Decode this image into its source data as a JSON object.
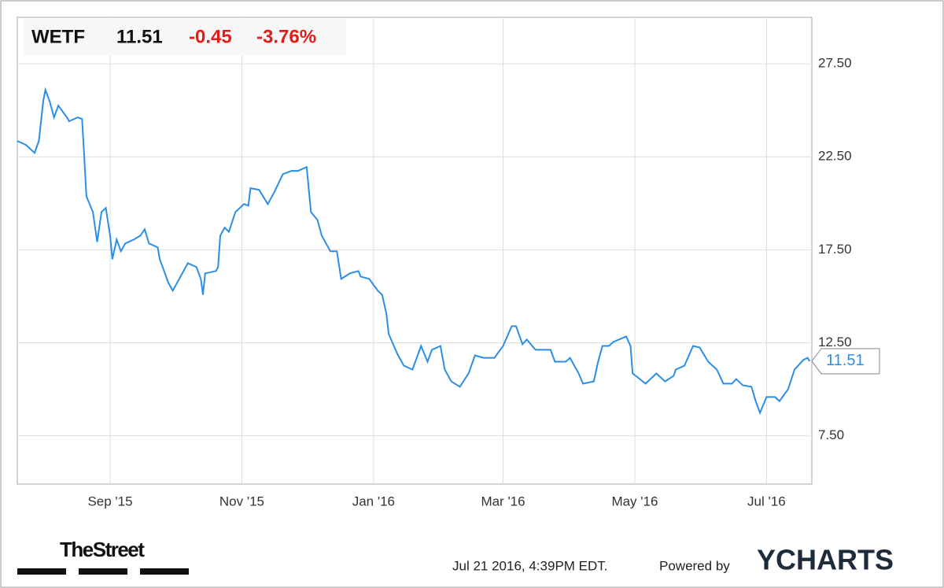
{
  "header": {
    "ticker": "WETF",
    "price": "11.51",
    "change": "-0.45",
    "change_pct": "-3.76%"
  },
  "chart_data": {
    "type": "line",
    "color": "#2b8ee6",
    "grid": true,
    "x": [
      -43,
      -39,
      -35,
      -33,
      -31,
      -30,
      -28,
      -26,
      -24,
      -20,
      -19,
      -15,
      -13,
      -12,
      -11,
      -8,
      -6,
      -4,
      -2,
      0,
      1,
      3,
      5,
      7,
      11,
      14,
      16,
      18,
      22,
      23,
      25,
      27,
      29,
      32,
      36,
      40,
      42,
      43,
      44,
      49,
      50,
      51,
      53,
      55,
      58,
      62,
      64,
      65,
      69,
      73,
      76,
      80,
      84,
      87,
      91,
      93,
      96,
      98,
      102,
      105,
      107,
      111,
      115,
      116,
      120,
      124,
      126,
      128,
      129,
      133,
      136,
      140,
      144,
      147,
      149,
      153,
      155,
      158,
      162,
      166,
      169,
      173,
      178,
      182,
      186,
      188,
      191,
      193,
      197,
      200,
      204,
      206,
      211,
      213,
      217,
      219,
      224,
      226,
      228,
      231,
      233,
      239,
      241,
      242,
      248,
      253,
      257,
      261,
      262,
      266,
      270,
      273,
      277,
      281,
      284,
      288,
      290,
      293,
      297,
      299,
      301,
      304,
      308,
      310,
      314,
      317,
      321,
      323,
      324
    ],
    "values": [
      23.35,
      23.14,
      22.71,
      23.35,
      25.47,
      26.1,
      25.47,
      24.62,
      25.25,
      24.62,
      24.41,
      24.62,
      24.53,
      22.5,
      20.38,
      19.53,
      17.92,
      19.53,
      19.75,
      18.26,
      16.99,
      18.05,
      17.42,
      17.84,
      18.05,
      18.26,
      18.6,
      17.84,
      17.63,
      16.99,
      16.36,
      15.72,
      15.3,
      15.93,
      16.78,
      16.57,
      15.93,
      15.08,
      16.23,
      16.36,
      16.57,
      18.26,
      18.69,
      18.47,
      19.53,
      19.96,
      19.87,
      20.81,
      20.72,
      19.96,
      20.59,
      21.57,
      21.74,
      21.74,
      21.95,
      19.53,
      19.11,
      18.26,
      17.42,
      17.42,
      15.93,
      16.23,
      16.36,
      16.06,
      15.93,
      15.3,
      15.08,
      14.03,
      12.97,
      11.91,
      11.27,
      11.06,
      12.33,
      11.48,
      12.12,
      12.33,
      11.06,
      10.42,
      10.13,
      10.85,
      11.82,
      11.69,
      11.69,
      12.33,
      13.39,
      13.39,
      12.42,
      12.67,
      12.12,
      12.12,
      12.12,
      11.48,
      11.48,
      11.69,
      10.85,
      10.3,
      10.42,
      11.48,
      12.33,
      12.33,
      12.54,
      12.84,
      12.33,
      10.85,
      10.3,
      10.85,
      10.42,
      10.72,
      11.06,
      11.27,
      12.33,
      12.25,
      11.48,
      11.06,
      10.3,
      10.3,
      10.55,
      10.21,
      10.13,
      9.36,
      8.73,
      9.58,
      9.58,
      9.36,
      10.0,
      11.06,
      11.57,
      11.69,
      11.51
    ],
    "xlim": [
      -43,
      325
    ],
    "xticks": [
      {
        "value": 0,
        "label": "Sep '15"
      },
      {
        "value": 61,
        "label": "Nov '15"
      },
      {
        "value": 122,
        "label": "Jan '16"
      },
      {
        "value": 182,
        "label": "Mar '16"
      },
      {
        "value": 243,
        "label": "May '16"
      },
      {
        "value": 304,
        "label": "Jul '16"
      }
    ],
    "ylim": [
      4.9,
      30
    ],
    "yticks": [
      {
        "value": 7.5,
        "label": "7.50"
      },
      {
        "value": 12.5,
        "label": "12.50"
      },
      {
        "value": 17.5,
        "label": "17.50"
      },
      {
        "value": 22.5,
        "label": "22.50"
      },
      {
        "value": 27.5,
        "label": "27.50"
      }
    ]
  },
  "footer": {
    "source": "TheStreet",
    "timestamp": "Jul 21 2016, 4:39PM EDT.",
    "powered": "Powered by",
    "brand": "YCHARTS"
  }
}
